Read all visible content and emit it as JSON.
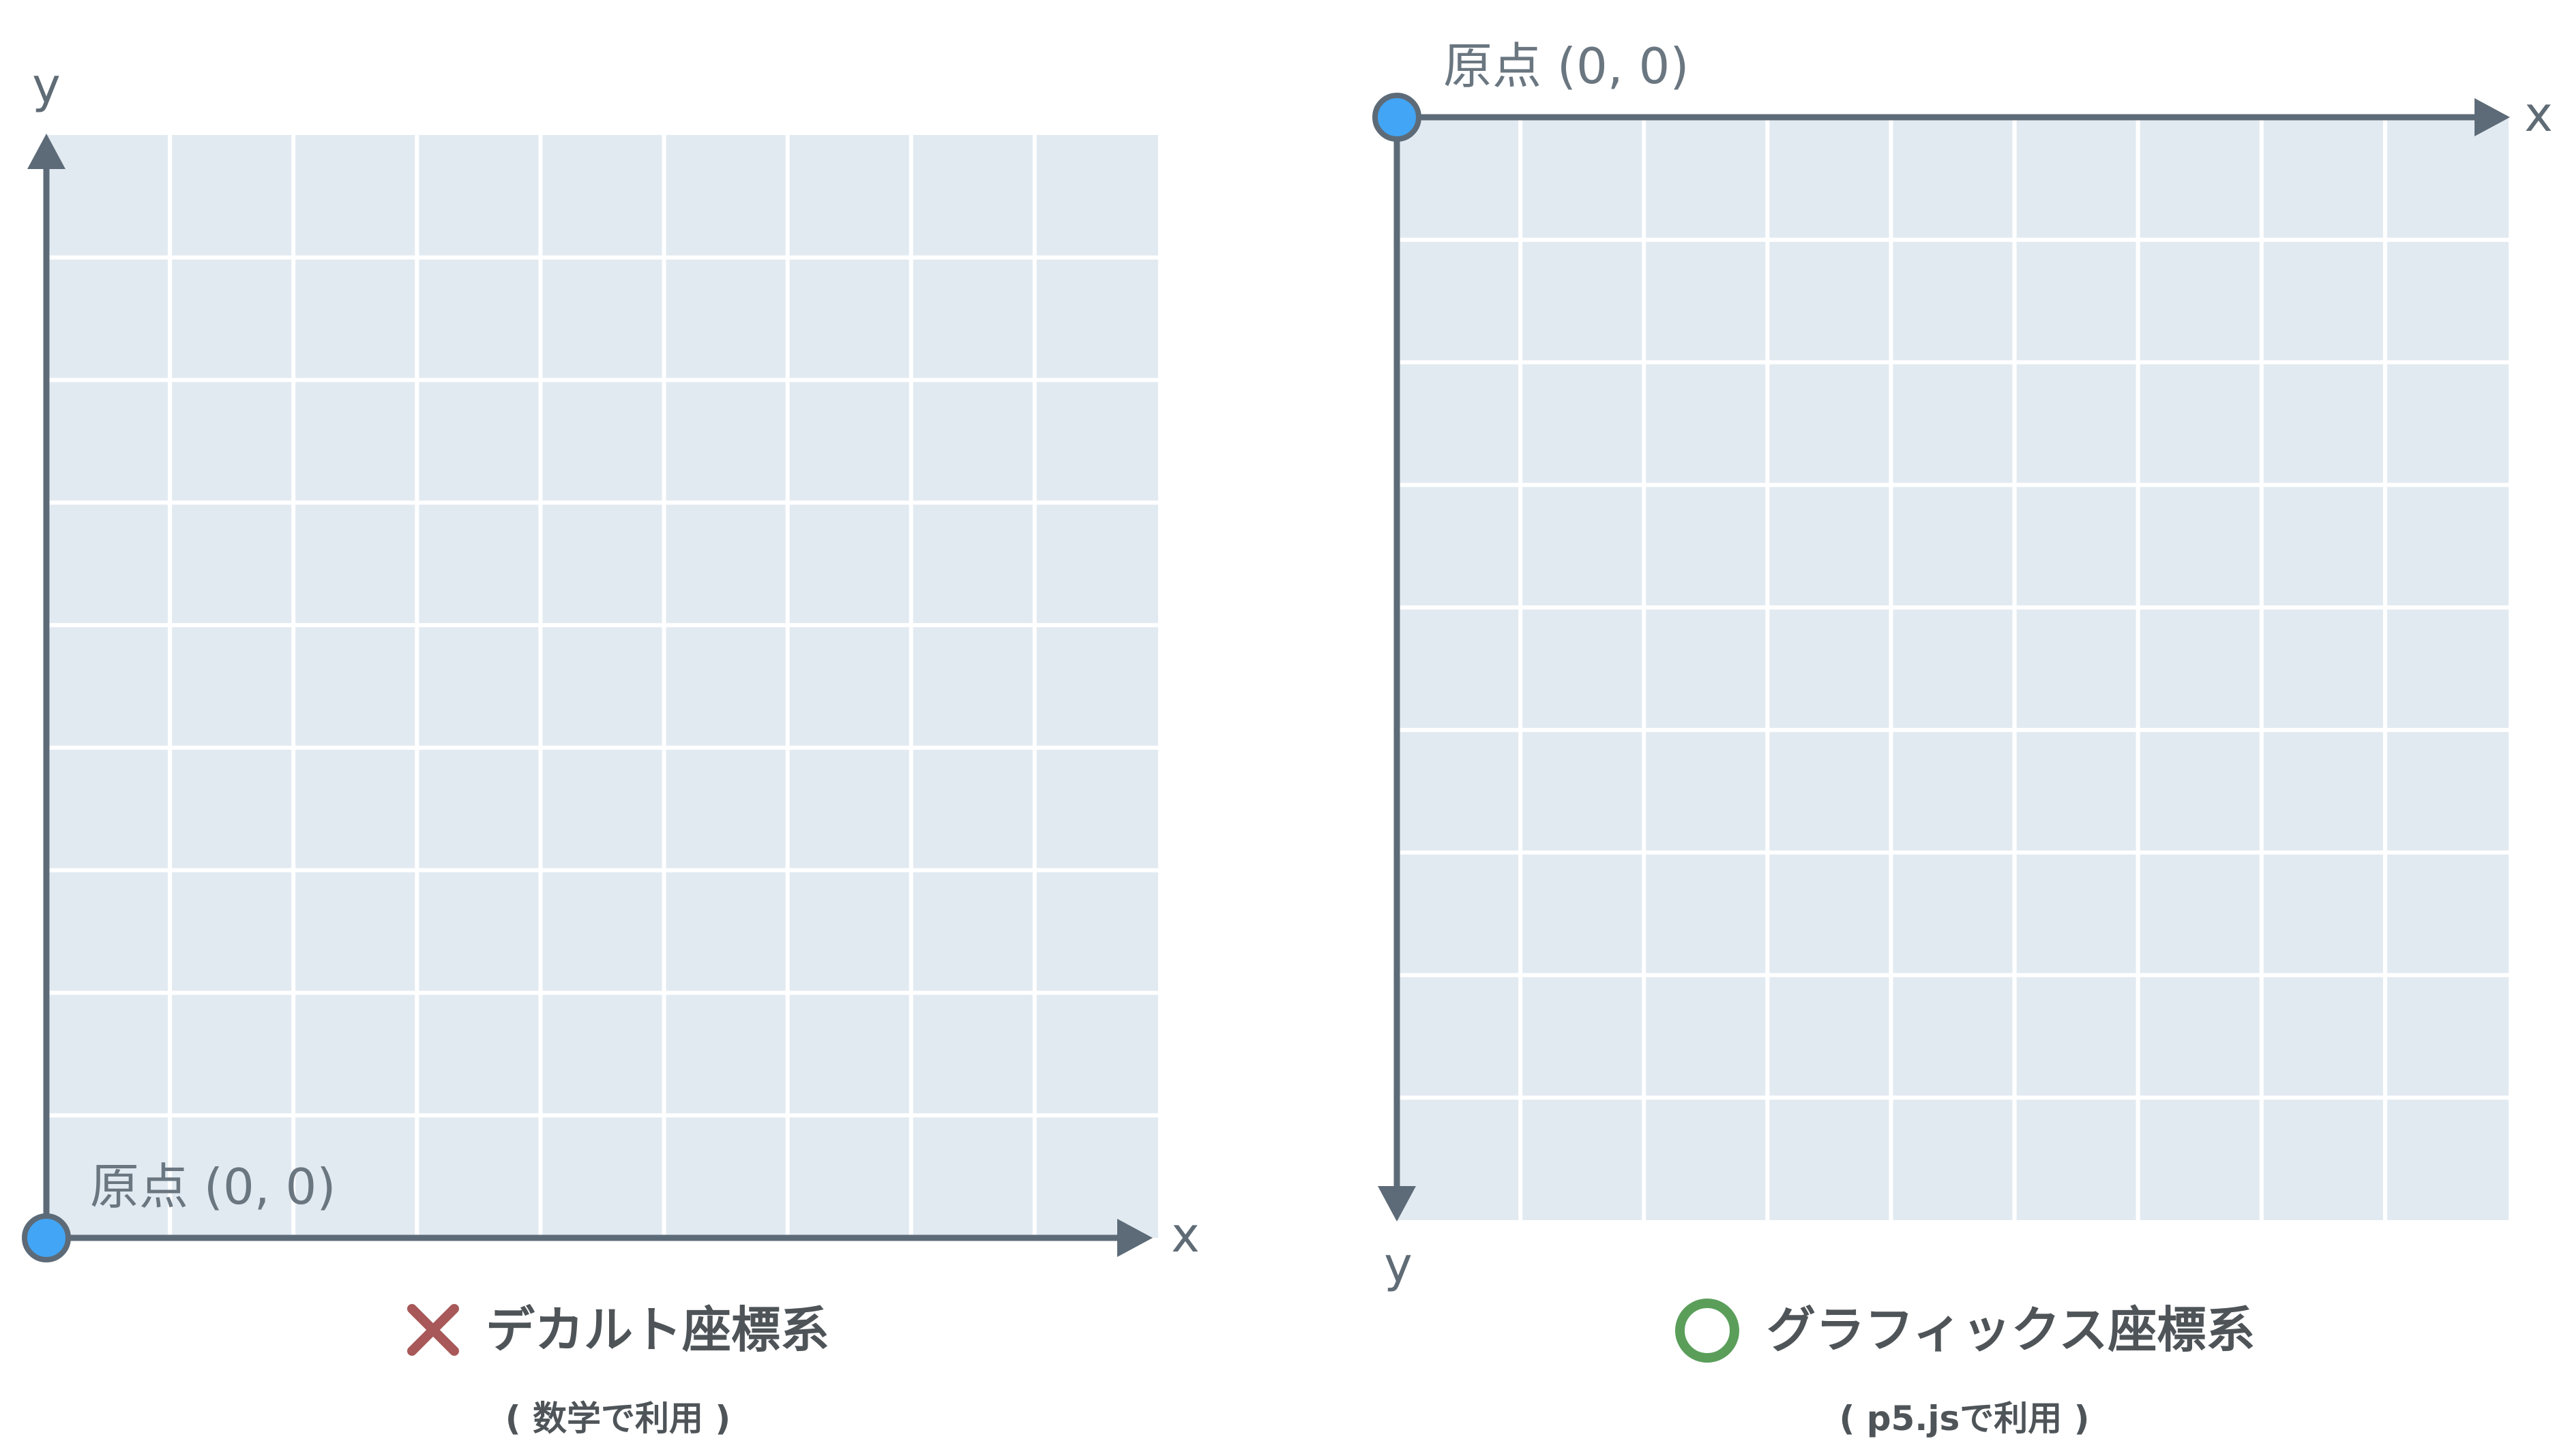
{
  "colors": {
    "grid_fill": "#e2eaf1",
    "grid_line": "#ffffff",
    "axis": "#5d6b78",
    "origin_dot": "#42a5f5",
    "cross_mark": "#a85858",
    "circle_mark": "#5a9e5a"
  },
  "left_panel": {
    "y_axis_label": "y",
    "x_axis_label": "x",
    "origin_label": "原点 (0, 0)",
    "verdict_icon": "cross-icon",
    "caption_title": "デカルト座標系",
    "caption_sub": "( 数学で利用 )"
  },
  "right_panel": {
    "x_axis_label": "x",
    "y_axis_label": "y",
    "origin_label": "原点 (0, 0)",
    "verdict_icon": "circle-icon",
    "caption_title": "グラフィックス座標系",
    "caption_sub": "( p5.jsで利用 )"
  }
}
